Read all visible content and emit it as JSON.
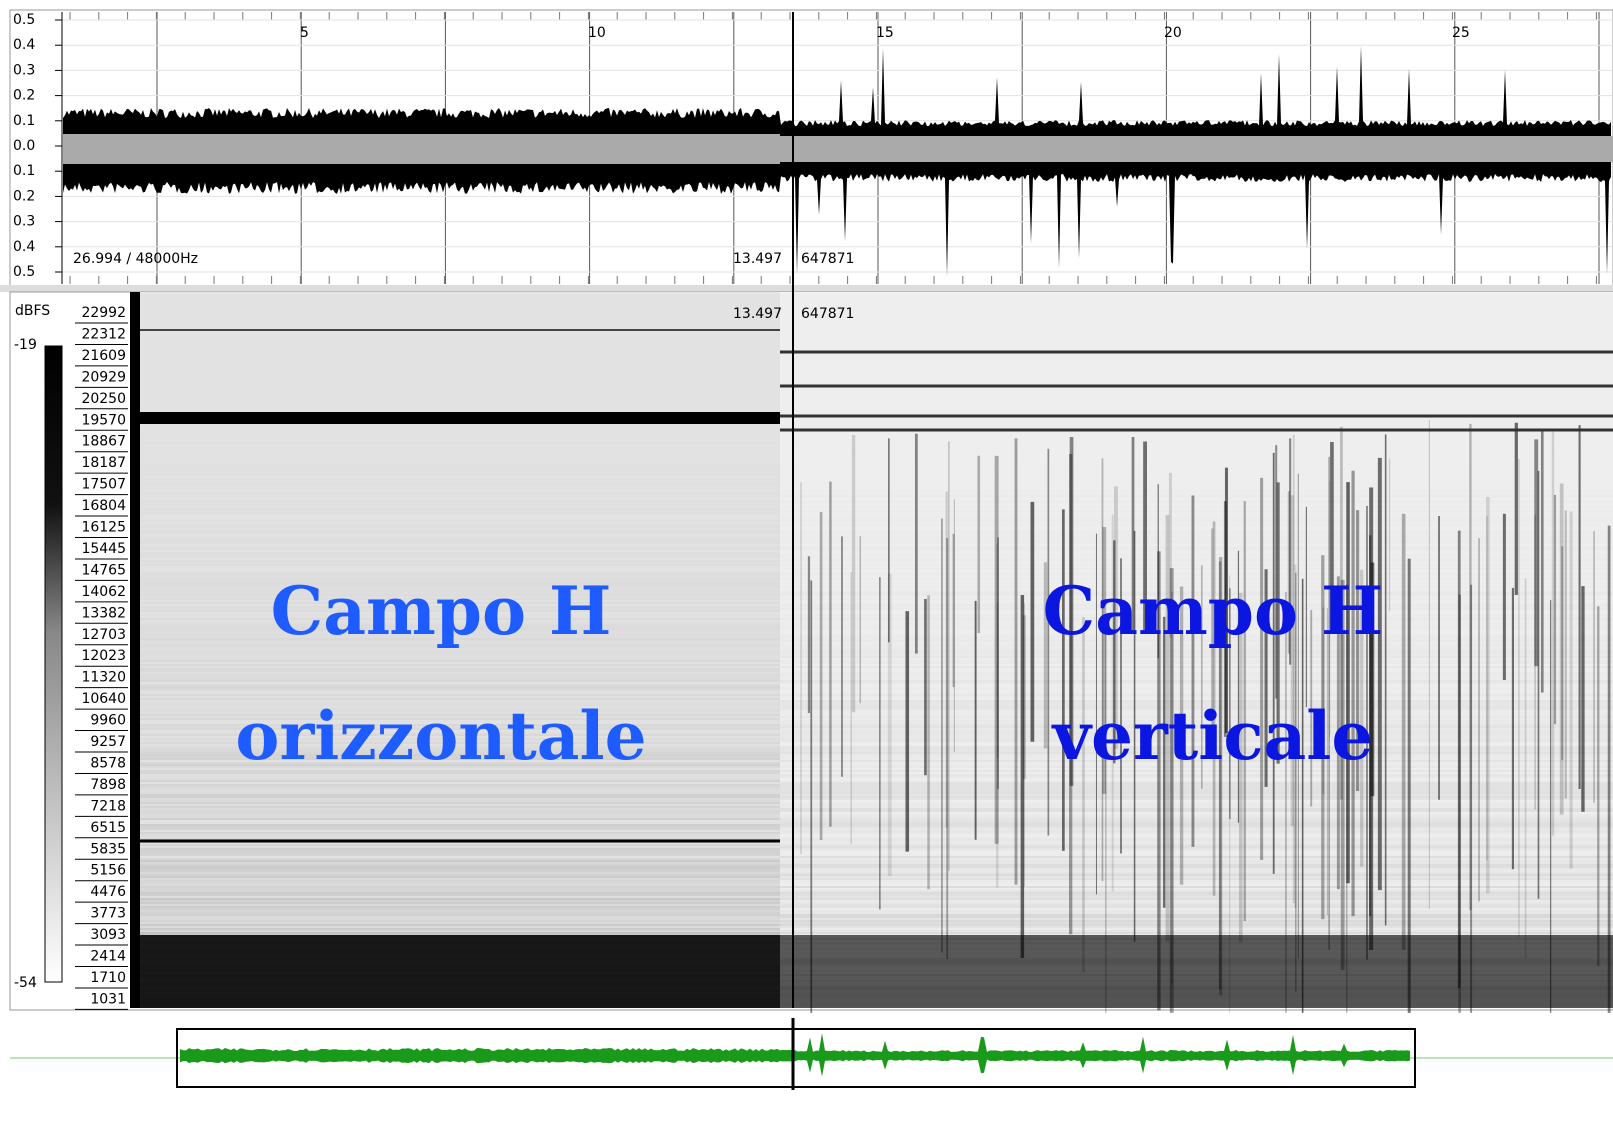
{
  "waveform": {
    "amplitude_labels": [
      "0.5",
      "0.4",
      "0.3",
      "0.2",
      "0.1",
      "0.0",
      "0.1",
      "0.2",
      "0.3",
      "0.4",
      "0.5"
    ],
    "time_labels": [
      "5",
      "10",
      "15",
      "20",
      "25"
    ],
    "sample_rate_label": "26.994 / 48000Hz",
    "cursor_time": "13.497",
    "cursor_sample": "647871"
  },
  "spectrogram": {
    "unit_label": "dBFS",
    "level_max": "-19",
    "level_min": "-54",
    "frequency_labels": [
      "22992",
      "22312",
      "21609",
      "20929",
      "20250",
      "19570",
      "18867",
      "18187",
      "17507",
      "16804",
      "16125",
      "15445",
      "14765",
      "14062",
      "13382",
      "12703",
      "12023",
      "11320",
      "10640",
      "9960",
      "9257",
      "8578",
      "7898",
      "7218",
      "6515",
      "5835",
      "5156",
      "4476",
      "3773",
      "3093",
      "2414",
      "1710",
      "1031"
    ],
    "cursor_time": "13.497",
    "cursor_sample": "647871",
    "annotations": [
      {
        "lines": [
          "Campo H",
          "orizzontale"
        ]
      },
      {
        "lines": [
          "Campo H",
          "verticale"
        ]
      }
    ]
  }
}
